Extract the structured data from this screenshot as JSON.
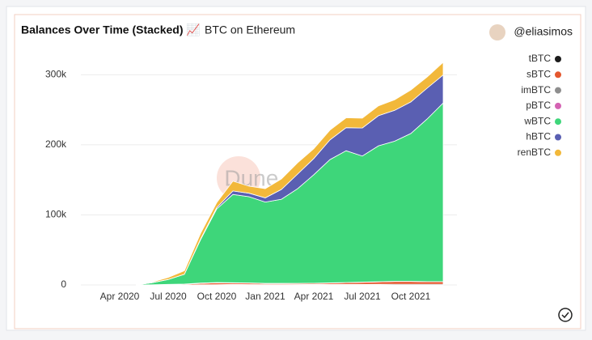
{
  "chart_data": {
    "type": "stacked-area",
    "title": "Balances Over Time (Stacked) 📈",
    "subtitle": "BTC on Ethereum",
    "author": "@eliasimos",
    "watermark": "Dune Analytics",
    "x": [
      "May 2020",
      "Jun 2020",
      "Jul 2020",
      "Aug 2020",
      "Sep 2020",
      "Oct 2020",
      "Nov 2020",
      "Dec 2020",
      "Jan 2021",
      "Feb 2021",
      "Mar 2021",
      "Apr 2021",
      "May 2021",
      "Jun 2021",
      "Jul 2021",
      "Aug 2021",
      "Sep 2021",
      "Oct 2021",
      "Nov 2021",
      "Dec 2021"
    ],
    "xlim": [
      "Feb 2020",
      "Jan 2022"
    ],
    "xticks": [
      "Apr 2020",
      "Jul 2020",
      "Oct 2020",
      "Jan 2021",
      "Apr 2021",
      "Jul 2021",
      "Oct 2021"
    ],
    "ylim": [
      0,
      320000
    ],
    "yticks": [
      0,
      {
        "value": 100000,
        "label": "100k"
      },
      {
        "value": 200000,
        "label": "200k"
      },
      {
        "value": 300000,
        "label": "300k"
      }
    ],
    "grid": true,
    "legend": "right",
    "series": [
      {
        "name": "tBTC",
        "color": "#1c1c1c",
        "values": [
          0,
          0,
          0,
          0,
          200,
          500,
          800,
          600,
          500,
          500,
          600,
          700,
          800,
          800,
          800,
          900,
          1000,
          1000,
          1000,
          1000
        ]
      },
      {
        "name": "sBTC",
        "color": "#e4572e",
        "values": [
          0,
          0,
          500,
          1000,
          2000,
          2500,
          2000,
          2000,
          1500,
          1500,
          1500,
          1500,
          2000,
          2500,
          3000,
          3500,
          4000,
          4000,
          3500,
          3500
        ]
      },
      {
        "name": "imBTC",
        "color": "#8e8e8e",
        "values": [
          0,
          200,
          300,
          300,
          300,
          300,
          200,
          200,
          200,
          200,
          100,
          100,
          100,
          100,
          100,
          100,
          100,
          100,
          100,
          100
        ]
      },
      {
        "name": "pBTC",
        "color": "#d463b3",
        "values": [
          0,
          0,
          0,
          0,
          100,
          200,
          100,
          100,
          100,
          100,
          100,
          100,
          100,
          100,
          100,
          100,
          100,
          100,
          100,
          100
        ]
      },
      {
        "name": "wBTC",
        "color": "#3ed67a",
        "values": [
          0,
          3000,
          7000,
          14000,
          62000,
          105000,
          126000,
          123000,
          116000,
          120000,
          135000,
          155000,
          176000,
          188000,
          180000,
          194000,
          200000,
          211000,
          232000,
          255000
        ]
      },
      {
        "name": "hBTC",
        "color": "#5a5fb2",
        "values": [
          0,
          0,
          0,
          0,
          1000,
          2000,
          5000,
          5000,
          6000,
          14000,
          21000,
          23000,
          28000,
          33000,
          40000,
          43000,
          44000,
          45000,
          44000,
          40000
        ]
      },
      {
        "name": "renBTC",
        "color": "#f2b83a",
        "values": [
          0,
          1000,
          3000,
          5000,
          8000,
          7000,
          14000,
          10000,
          13000,
          15000,
          16000,
          14000,
          14000,
          14000,
          14000,
          14000,
          15000,
          17000,
          16000,
          18000
        ]
      }
    ]
  }
}
